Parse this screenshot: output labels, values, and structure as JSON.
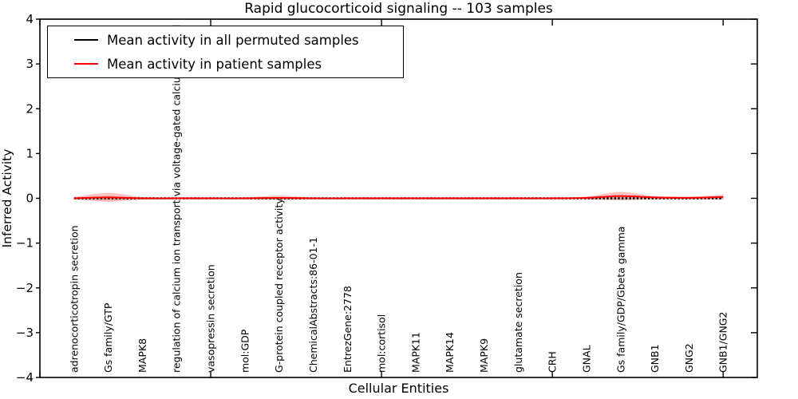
{
  "figure": {
    "background": "#ffffff",
    "accent_red": "#ff0000",
    "foreground": "#000000"
  },
  "chart_data": {
    "type": "line",
    "title": "Rapid glucocorticoid signaling -- 103 samples",
    "xlabel": "Cellular Entities",
    "ylabel": "Inferred Activity",
    "ylim": [
      -4,
      4
    ],
    "xlim": [
      0,
      21
    ],
    "yticks": [
      -4,
      -3,
      -2,
      -1,
      0,
      1,
      2,
      3,
      4
    ],
    "x_major_ticks": [
      0,
      5,
      10,
      15,
      20
    ],
    "grid": false,
    "legend_position": "upper left",
    "categories": [
      "adrenocorticotropin secretion",
      "Gs family/GTP",
      "MAPK8",
      "regulation of calcium ion transport via voltage-gated calcium channel",
      "vasopressin secretion",
      "mol:GDP",
      "G-protein coupled receptor activity",
      "ChemicalAbstracts:86-01-1",
      "EntrezGene:2778",
      "mol:cortisol",
      "MAPK11",
      "MAPK14",
      "MAPK9",
      "glutamate secretion",
      "CRH",
      "GNAL",
      "Gs family/GDP/Gbeta gamma",
      "GNB1",
      "GNG2",
      "GNB1/GNG2"
    ],
    "series": [
      {
        "name": "Mean activity in all permuted samples",
        "color": "#000000",
        "linestyle": "dashed",
        "values": [
          0,
          0,
          0,
          0,
          0,
          0,
          0,
          0,
          0,
          0,
          0,
          0,
          0,
          0,
          0,
          0,
          0,
          0,
          0,
          0
        ],
        "band": [
          0.02,
          0.05,
          0.02,
          0.02,
          0.02,
          0.02,
          0.03,
          0.02,
          0.02,
          0.02,
          0.02,
          0.02,
          0.02,
          0.02,
          0.02,
          0.02,
          0.05,
          0.03,
          0.02,
          0.03
        ],
        "band_color": "#000000",
        "band_opacity": 0.13
      },
      {
        "name": "Mean activity in patient samples",
        "color": "#ff0000",
        "linestyle": "solid",
        "values": [
          0,
          0.02,
          0,
          0,
          0,
          0,
          0.01,
          0,
          0,
          0,
          0,
          0,
          0,
          0,
          0,
          0.01,
          0.05,
          0.02,
          0.01,
          0.03
        ],
        "band": [
          0.03,
          0.1,
          0.03,
          0.02,
          0.02,
          0.02,
          0.05,
          0.02,
          0.02,
          0.02,
          0.02,
          0.02,
          0.02,
          0.02,
          0.02,
          0.03,
          0.09,
          0.03,
          0.03,
          0.05
        ],
        "band_color": "#ff0000",
        "band_opacity": 0.24
      }
    ]
  }
}
